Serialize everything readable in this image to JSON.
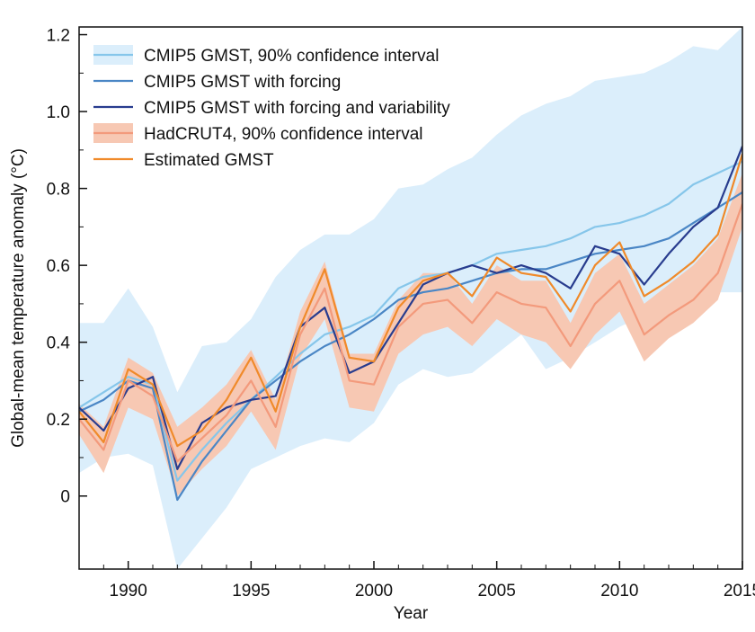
{
  "chart_data": {
    "type": "line",
    "title": "",
    "xlabel": "Year",
    "ylabel": "Global-mean temperature anomaly (°C)",
    "xlim": [
      1988,
      2015
    ],
    "ylim": [
      -0.19,
      1.22
    ],
    "xticks": [
      1990,
      1995,
      2000,
      2005,
      2010,
      2015
    ],
    "yticks": [
      0,
      0.2,
      0.4,
      0.6,
      0.8,
      1.0,
      1.2
    ],
    "ytick_labels": [
      "0",
      "0.2",
      "0.4",
      "0.6",
      "0.8",
      "1.0",
      "1.2"
    ],
    "grid": false,
    "legend_position": "top-left",
    "x": [
      1988,
      1989,
      1990,
      1991,
      1992,
      1993,
      1994,
      1995,
      1996,
      1997,
      1998,
      1999,
      2000,
      2001,
      2002,
      2003,
      2004,
      2005,
      2006,
      2007,
      2008,
      2009,
      2010,
      2011,
      2012,
      2013,
      2014,
      2015
    ],
    "bands": [
      {
        "name": "CMIP5 GMST, 90% confidence interval",
        "color": "#dbeefb",
        "lower": [
          0.06,
          0.1,
          0.11,
          0.08,
          -0.19,
          -0.11,
          -0.03,
          0.07,
          0.1,
          0.13,
          0.15,
          0.14,
          0.19,
          0.29,
          0.33,
          0.31,
          0.32,
          0.37,
          0.42,
          0.33,
          0.36,
          0.4,
          0.44,
          0.47,
          0.48,
          0.5,
          0.53,
          0.53
        ],
        "upper": [
          0.45,
          0.45,
          0.54,
          0.44,
          0.27,
          0.39,
          0.4,
          0.46,
          0.57,
          0.64,
          0.68,
          0.68,
          0.72,
          0.8,
          0.81,
          0.85,
          0.88,
          0.94,
          0.99,
          1.02,
          1.04,
          1.08,
          1.09,
          1.1,
          1.13,
          1.17,
          1.16,
          1.22
        ]
      },
      {
        "name": "HadCRUT4, 90% confidence interval",
        "color": "#f7c8b3",
        "lower": [
          0.16,
          0.06,
          0.23,
          0.2,
          0.0,
          0.07,
          0.13,
          0.22,
          0.12,
          0.36,
          0.46,
          0.23,
          0.22,
          0.37,
          0.42,
          0.44,
          0.39,
          0.46,
          0.42,
          0.4,
          0.33,
          0.42,
          0.48,
          0.35,
          0.41,
          0.45,
          0.51,
          0.7
        ],
        "upper": [
          0.24,
          0.18,
          0.36,
          0.32,
          0.18,
          0.23,
          0.29,
          0.38,
          0.25,
          0.48,
          0.61,
          0.37,
          0.37,
          0.51,
          0.58,
          0.58,
          0.5,
          0.6,
          0.56,
          0.56,
          0.45,
          0.58,
          0.63,
          0.5,
          0.55,
          0.6,
          0.67,
          0.84
        ]
      }
    ],
    "series": [
      {
        "name": "CMIP5 GMST",
        "color": "#86c6ea",
        "values": [
          0.23,
          0.27,
          0.31,
          0.29,
          0.04,
          0.12,
          0.19,
          0.25,
          0.31,
          0.37,
          0.42,
          0.44,
          0.47,
          0.54,
          0.57,
          0.58,
          0.6,
          0.63,
          0.64,
          0.65,
          0.67,
          0.7,
          0.71,
          0.73,
          0.76,
          0.81,
          0.84,
          0.87
        ]
      },
      {
        "name": "CMIP5 GMST with forcing",
        "color": "#4a86c5",
        "values": [
          0.22,
          0.25,
          0.3,
          0.28,
          -0.01,
          0.09,
          0.17,
          0.25,
          0.3,
          0.35,
          0.39,
          0.42,
          0.46,
          0.51,
          0.53,
          0.54,
          0.56,
          0.58,
          0.59,
          0.59,
          0.61,
          0.63,
          0.64,
          0.65,
          0.67,
          0.71,
          0.75,
          0.79
        ]
      },
      {
        "name": "CMIP5 GMST with forcing and variability",
        "color": "#283c8e",
        "values": [
          0.23,
          0.17,
          0.28,
          0.31,
          0.07,
          0.19,
          0.23,
          0.25,
          0.26,
          0.44,
          0.49,
          0.32,
          0.35,
          0.45,
          0.55,
          0.58,
          0.6,
          0.58,
          0.6,
          0.58,
          0.54,
          0.65,
          0.63,
          0.55,
          0.63,
          0.7,
          0.75,
          0.91
        ]
      },
      {
        "name": "HadCRUT4",
        "color": "#f39a7c",
        "values": [
          0.2,
          0.12,
          0.3,
          0.26,
          0.09,
          0.15,
          0.21,
          0.3,
          0.18,
          0.42,
          0.54,
          0.3,
          0.29,
          0.44,
          0.5,
          0.51,
          0.45,
          0.53,
          0.5,
          0.49,
          0.39,
          0.5,
          0.56,
          0.42,
          0.47,
          0.51,
          0.58,
          0.76
        ]
      },
      {
        "name": "Estimated GMST",
        "color": "#f08a2a",
        "values": [
          0.22,
          0.14,
          0.33,
          0.29,
          0.13,
          0.17,
          0.25,
          0.36,
          0.22,
          0.44,
          0.59,
          0.36,
          0.35,
          0.49,
          0.56,
          0.58,
          0.52,
          0.62,
          0.58,
          0.57,
          0.48,
          0.6,
          0.66,
          0.52,
          0.56,
          0.61,
          0.68,
          0.89
        ]
      }
    ],
    "legend": [
      {
        "label": "CMIP5 GMST, 90% confidence interval",
        "color": "#86c6ea",
        "band_color": "#dbeefb"
      },
      {
        "label": "CMIP5 GMST with forcing",
        "color": "#4a86c5"
      },
      {
        "label": "CMIP5 GMST with forcing and variability",
        "color": "#283c8e"
      },
      {
        "label": "HadCRUT4, 90% confidence interval",
        "color": "#f39a7c",
        "band_color": "#f7c8b3"
      },
      {
        "label": "Estimated GMST",
        "color": "#f08a2a"
      }
    ]
  }
}
